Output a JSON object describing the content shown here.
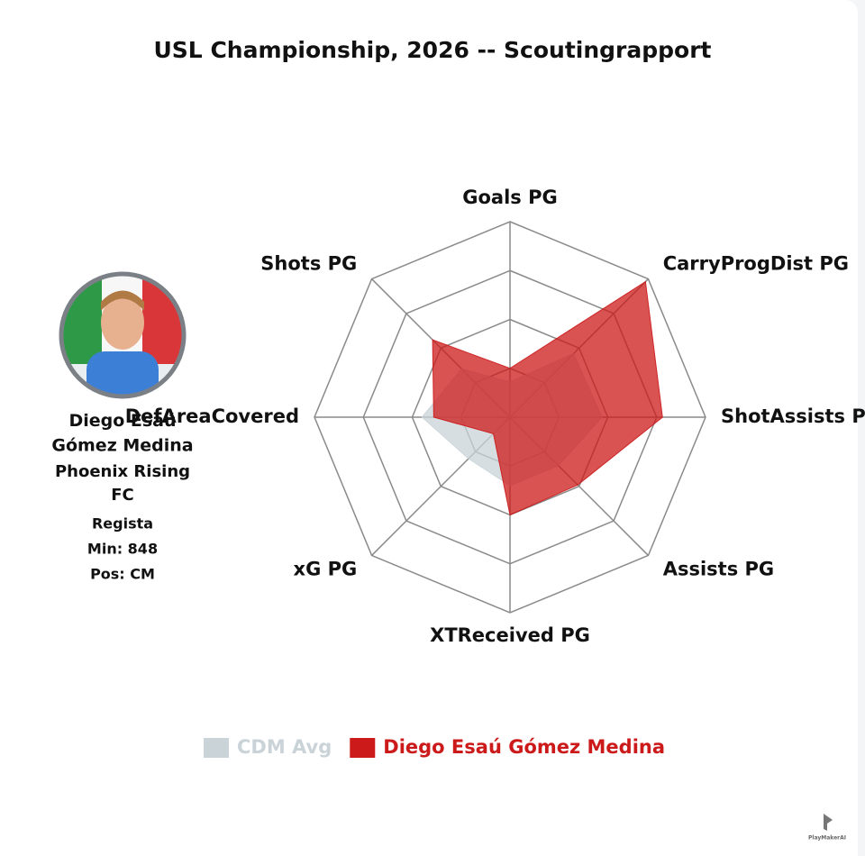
{
  "chart_data": {
    "type": "radar",
    "title": "USL Championship, 2026 -- Scoutingrapport",
    "categories": [
      "Goals PG",
      "CarryProgDist PG",
      "ShotAssists PG",
      "Assists PG",
      "XTReceived PG",
      "xG PG",
      "DefAreaCovered",
      "Shots PG"
    ],
    "ylim": [
      0,
      100
    ],
    "yticks": [
      25,
      50,
      75,
      100
    ],
    "grid": true,
    "series": [
      {
        "name": "CDM Avg",
        "color": "#c9d3d8",
        "values": [
          18,
          46,
          47,
          35,
          35,
          30,
          45,
          35
        ]
      },
      {
        "name": "Diego Esaú Gómez Medina",
        "color": "#cc1a1a",
        "values": [
          25,
          98,
          78,
          49,
          50,
          12,
          39,
          56
        ]
      }
    ]
  },
  "player": {
    "name": "Diego Esaú Gómez Medina",
    "team": "Phoenix Rising FC",
    "role": "Regista",
    "minutes": "Min: 848",
    "position": "Pos: CM"
  },
  "watermark": "PlayMakerAI"
}
